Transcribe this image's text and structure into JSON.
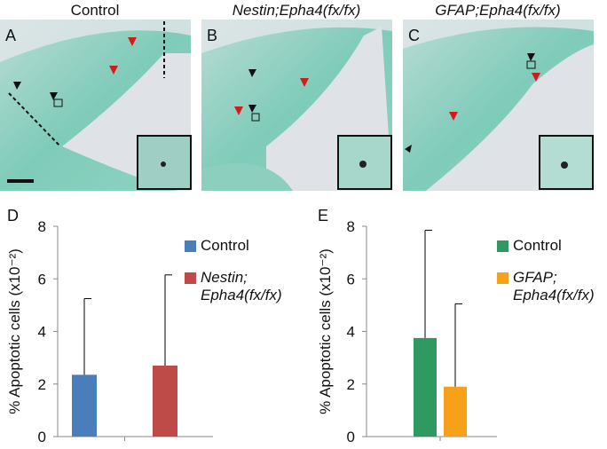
{
  "image_panels": [
    {
      "letter": "A",
      "title": "Control"
    },
    {
      "letter": "B",
      "title": "Nestin;Epha4(fx/fx)"
    },
    {
      "letter": "C",
      "title": "GFAP;Epha4(fx/fx)"
    }
  ],
  "chart_data": [
    {
      "type": "bar",
      "panel_label": "D",
      "ylabel": "% Apoptotic cells (x10⁻²)",
      "ylim": [
        0,
        8
      ],
      "yticks": [
        0,
        2,
        4,
        6,
        8
      ],
      "grid": false,
      "legend": "right",
      "series": [
        {
          "name": "Control",
          "color": "#4a7ebb",
          "values": [
            2.35
          ],
          "errors": [
            2.9
          ]
        },
        {
          "name": "Nestin; Epha4(fx/fx)",
          "color": "#be4b48",
          "values": [
            2.7
          ],
          "errors": [
            3.45
          ]
        }
      ]
    },
    {
      "type": "bar",
      "panel_label": "E",
      "ylabel": "% Apoptotic cells (x10⁻²)",
      "ylim": [
        0,
        8
      ],
      "yticks": [
        0,
        2,
        4,
        6,
        8
      ],
      "grid": false,
      "legend": "right",
      "series": [
        {
          "name": "Control",
          "color": "#2e9a62",
          "values": [
            3.75
          ],
          "errors": [
            4.1
          ]
        },
        {
          "name": "GFAP; Epha4(fx/fx)",
          "color": "#f7a11a",
          "values": [
            1.9
          ],
          "errors": [
            3.15
          ]
        }
      ]
    }
  ]
}
